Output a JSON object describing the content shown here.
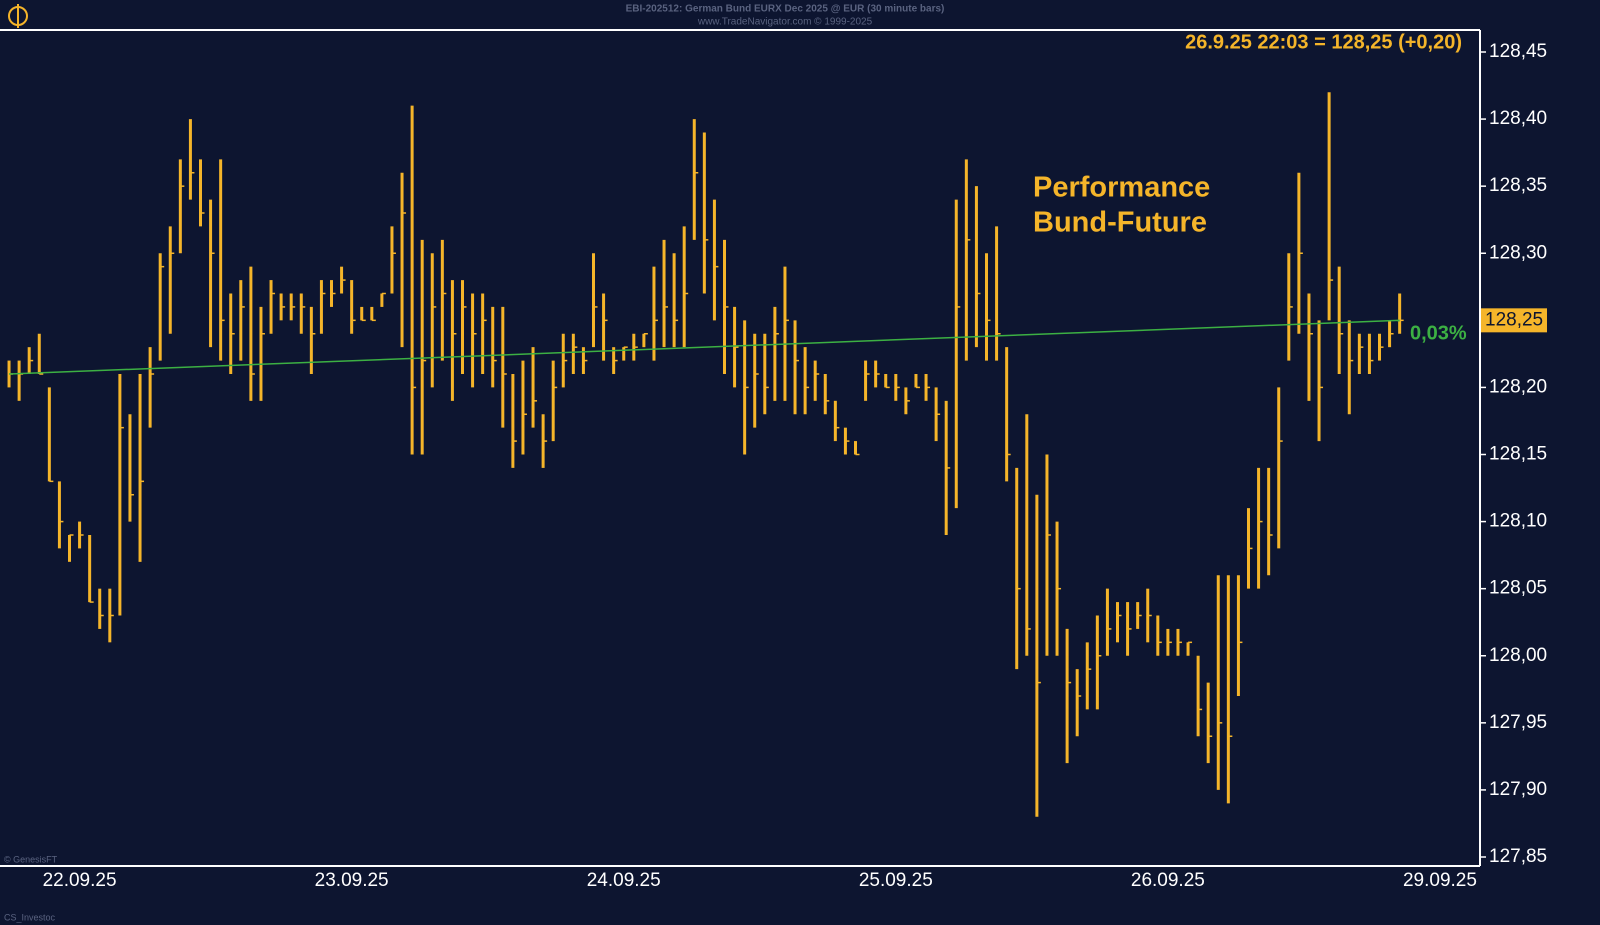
{
  "chart_data": {
    "type": "ohlc",
    "header": "EBI-202512:  German Bund EURX Dec 2025 @ EUR  (30 minute bars)",
    "subheader": "www.TradeNavigator.com © 1999-2025",
    "title_lines": [
      "Performance",
      "Bund-Future"
    ],
    "quote": "26.9.25 22:03 = 128,25 (+0,20)",
    "source": "© GenesisFT",
    "author": "CS_Investoc",
    "color": "#f5b52a",
    "categories": [
      null,
      null,
      null,
      null,
      null,
      null,
      null,
      "22.09.25",
      null,
      null,
      null,
      null,
      null,
      null,
      null,
      null,
      null,
      null,
      null,
      null,
      null,
      null,
      null,
      null,
      null,
      null,
      null,
      null,
      null,
      null,
      null,
      null,
      null,
      null,
      "23.09.25",
      null,
      null,
      null,
      null,
      null,
      null,
      null,
      null,
      null,
      null,
      null,
      null,
      null,
      null,
      null,
      null,
      null,
      null,
      null,
      null,
      null,
      null,
      null,
      null,
      null,
      null,
      "24.09.25",
      null,
      null,
      null,
      null,
      null,
      null,
      null,
      null,
      null,
      null,
      null,
      null,
      null,
      null,
      null,
      null,
      null,
      null,
      null,
      null,
      null,
      null,
      null,
      null,
      null,
      null,
      "25.09.25",
      null,
      null,
      null,
      null,
      null,
      null,
      null,
      null,
      null,
      null,
      null,
      null,
      null,
      null,
      null,
      null,
      null,
      null,
      null,
      null,
      null,
      null,
      null,
      null,
      null,
      null,
      "26.09.25",
      null,
      null,
      null,
      null,
      null,
      null,
      null,
      null,
      null,
      null,
      null,
      null,
      null,
      null,
      null,
      null,
      null,
      null,
      null,
      null,
      null,
      null,
      null,
      null,
      null,
      null,
      "29.09.25"
    ],
    "high": [
      128.22,
      128.22,
      128.23,
      128.24,
      128.2,
      128.13,
      128.09,
      128.1,
      128.09,
      128.05,
      128.05,
      128.21,
      128.18,
      128.21,
      128.23,
      128.3,
      128.32,
      128.37,
      128.4,
      128.37,
      128.34,
      128.37,
      128.27,
      128.28,
      128.29,
      128.26,
      128.28,
      128.27,
      128.27,
      128.27,
      128.26,
      128.28,
      128.28,
      128.29,
      128.28,
      128.26,
      128.26,
      128.27,
      128.32,
      128.36,
      128.41,
      128.31,
      128.3,
      128.31,
      128.28,
      128.28,
      128.27,
      128.27,
      128.26,
      128.26,
      128.21,
      128.22,
      128.23,
      128.18,
      128.22,
      128.24,
      128.24,
      128.23,
      128.3,
      128.27,
      128.23,
      128.23,
      128.24,
      128.24,
      128.29,
      128.31,
      128.3,
      128.32,
      128.4,
      128.39,
      128.34,
      128.31,
      128.26,
      128.25,
      128.24,
      128.24,
      128.26,
      128.29,
      128.25,
      128.23,
      128.22,
      128.21,
      128.19,
      128.17,
      128.16,
      128.22,
      128.22,
      128.21,
      128.21,
      128.2,
      128.21,
      128.21,
      128.2,
      128.19,
      128.34,
      128.37,
      128.35,
      128.3,
      128.32,
      128.23,
      128.14,
      128.18,
      128.12,
      128.15,
      128.1,
      128.02,
      127.99,
      128.01,
      128.03,
      128.05,
      128.04,
      128.04,
      128.04,
      128.05,
      128.03,
      128.02,
      128.02,
      128.01,
      128.0,
      127.98,
      128.06,
      128.06,
      128.06,
      128.11,
      128.14,
      128.14,
      128.2,
      128.3,
      128.36,
      128.27,
      128.25,
      128.42,
      128.29,
      128.25,
      128.24,
      128.24,
      128.24,
      128.25,
      128.27,
      null,
      null,
      null,
      null
    ],
    "low": [
      128.2,
      128.19,
      128.21,
      128.21,
      128.13,
      128.08,
      128.07,
      128.08,
      128.04,
      128.02,
      128.01,
      128.03,
      128.1,
      128.07,
      128.17,
      128.22,
      128.24,
      128.3,
      128.34,
      128.32,
      128.23,
      128.22,
      128.21,
      128.22,
      128.19,
      128.19,
      128.24,
      128.25,
      128.25,
      128.24,
      128.21,
      128.24,
      128.26,
      128.27,
      128.24,
      128.25,
      128.25,
      128.26,
      128.27,
      128.23,
      128.15,
      128.15,
      128.2,
      128.22,
      128.19,
      128.21,
      128.2,
      128.21,
      128.2,
      128.17,
      128.14,
      128.15,
      128.17,
      128.14,
      128.16,
      128.2,
      128.21,
      128.21,
      128.23,
      128.22,
      128.21,
      128.22,
      128.22,
      128.23,
      128.22,
      128.23,
      128.23,
      128.23,
      128.31,
      128.27,
      128.25,
      128.21,
      128.2,
      128.15,
      128.17,
      128.18,
      128.19,
      128.19,
      128.18,
      128.18,
      128.19,
      128.18,
      128.16,
      128.15,
      128.15,
      128.19,
      128.2,
      128.2,
      128.19,
      128.18,
      128.2,
      128.19,
      128.16,
      128.09,
      128.11,
      128.22,
      128.23,
      128.22,
      128.22,
      128.13,
      127.99,
      128.0,
      127.88,
      128.0,
      128.0,
      127.92,
      127.94,
      127.96,
      127.96,
      128.0,
      128.01,
      128.0,
      128.02,
      128.01,
      128.0,
      128.0,
      128.0,
      128.0,
      127.94,
      127.92,
      127.9,
      127.89,
      127.97,
      128.05,
      128.05,
      128.06,
      128.08,
      128.22,
      128.24,
      128.19,
      128.16,
      128.25,
      128.21,
      128.18,
      128.21,
      128.21,
      128.22,
      128.23,
      128.24,
      null,
      null,
      null,
      null
    ],
    "close": [
      128.21,
      128.21,
      128.22,
      128.21,
      128.13,
      128.1,
      128.09,
      128.09,
      128.04,
      128.03,
      128.03,
      128.17,
      128.12,
      128.13,
      128.21,
      128.29,
      128.3,
      128.35,
      128.36,
      128.33,
      128.3,
      128.25,
      128.24,
      128.26,
      128.21,
      128.24,
      128.27,
      128.26,
      128.26,
      128.26,
      128.24,
      128.27,
      128.27,
      128.28,
      128.25,
      128.25,
      128.25,
      128.27,
      128.3,
      128.33,
      128.2,
      128.22,
      128.26,
      128.27,
      128.24,
      128.26,
      128.24,
      128.25,
      128.22,
      128.21,
      128.16,
      128.18,
      128.19,
      128.16,
      128.2,
      128.22,
      128.23,
      128.22,
      128.26,
      128.25,
      128.22,
      128.23,
      128.23,
      128.24,
      128.25,
      128.26,
      128.25,
      128.27,
      128.36,
      128.31,
      128.29,
      128.26,
      128.23,
      128.2,
      128.21,
      128.2,
      128.24,
      128.25,
      128.22,
      128.2,
      128.21,
      128.19,
      128.17,
      128.16,
      128.15,
      128.21,
      128.21,
      128.2,
      128.2,
      128.19,
      128.2,
      128.2,
      128.18,
      128.14,
      128.26,
      128.31,
      128.27,
      128.25,
      128.24,
      128.15,
      128.05,
      128.02,
      127.98,
      128.09,
      128.05,
      127.98,
      127.97,
      127.99,
      128.0,
      128.02,
      128.03,
      128.02,
      128.03,
      128.03,
      128.01,
      128.01,
      128.01,
      128.01,
      127.96,
      127.94,
      127.95,
      127.94,
      128.01,
      128.08,
      128.1,
      128.09,
      128.16,
      128.26,
      128.3,
      128.24,
      128.2,
      128.28,
      128.24,
      128.22,
      128.23,
      128.22,
      128.23,
      128.24,
      128.25,
      null,
      null,
      null,
      null
    ],
    "performance": {
      "values": [
        128.21,
        128.25
      ],
      "label": "0,03%",
      "color": "#3cb043"
    },
    "last_price": {
      "value": 128.25,
      "label": "128,25"
    },
    "ylim": [
      127.85,
      128.45
    ],
    "yticks": [
      {
        "value": 127.85,
        "label": "127,85"
      },
      {
        "value": 127.9,
        "label": "127,90"
      },
      {
        "value": 127.95,
        "label": "127,95"
      },
      {
        "value": 128,
        "label": "128,00"
      },
      {
        "value": 128.05,
        "label": "128,05"
      },
      {
        "value": 128.1,
        "label": "128,10"
      },
      {
        "value": 128.15,
        "label": "128,15"
      },
      {
        "value": 128.2,
        "label": "128,20"
      },
      {
        "value": 128.25,
        "label": "128,25"
      },
      {
        "value": 128.3,
        "label": "128,30"
      },
      {
        "value": 128.35,
        "label": "128,35"
      },
      {
        "value": 128.4,
        "label": "128,40"
      },
      {
        "value": 128.45,
        "label": "128,45"
      }
    ],
    "grid": false
  }
}
